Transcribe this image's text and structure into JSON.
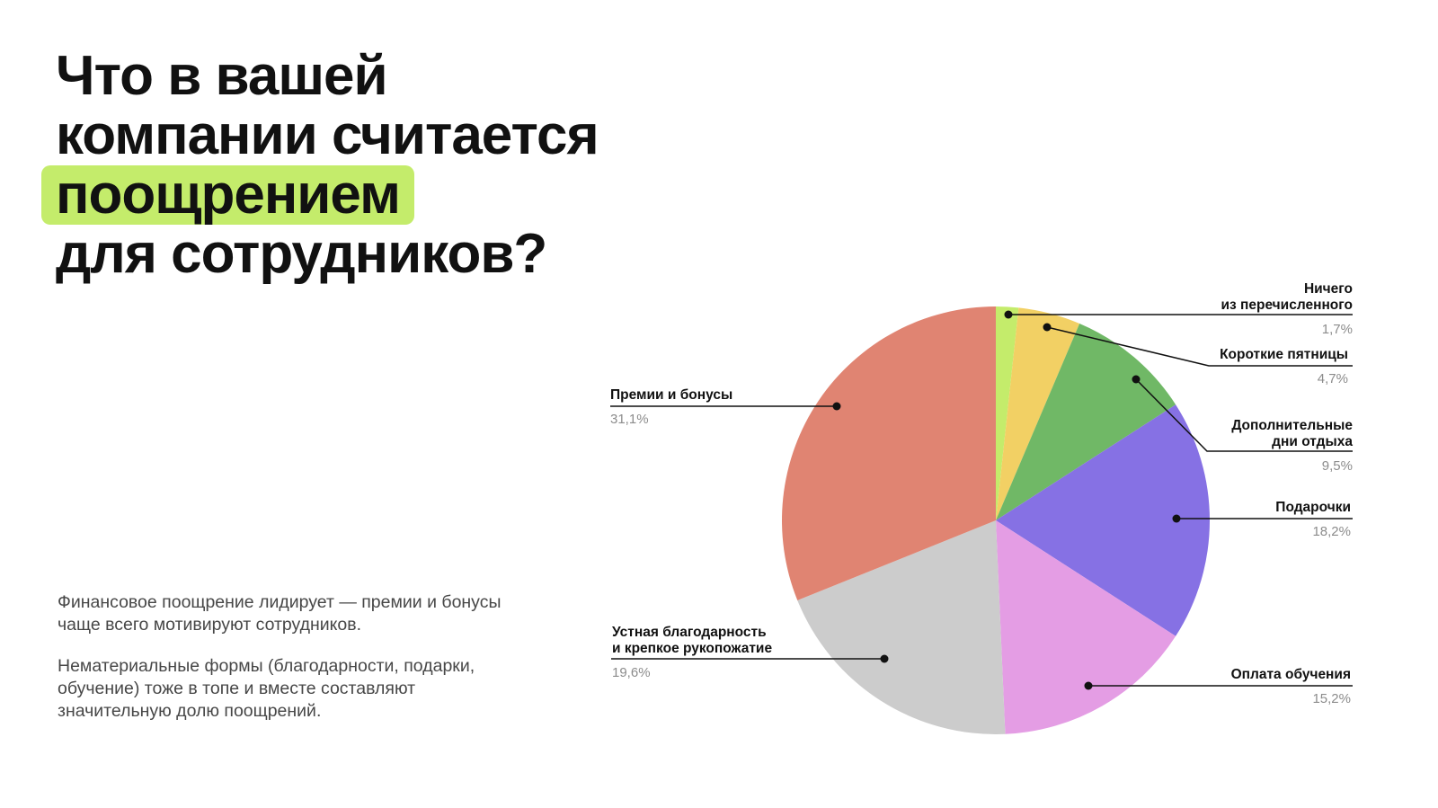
{
  "title": {
    "line1": "Что в вашей",
    "line2": "компании считается",
    "highlight": "поощрением",
    "line4": "для сотрудников?",
    "highlight_color": "#c4ec6b"
  },
  "description": {
    "p1": "Финансовое поощрение лидирует — премии и бонусы чаще всего мотивируют сотрудников.",
    "p2": "Нематериальные формы (благодарности, подарки, обучение) тоже в топе и вместе составляют значительную долю поощрений."
  },
  "chart_data": {
    "type": "pie",
    "start": "12 o'clock, clockwise",
    "slices": [
      {
        "label": "Ничего\nиз перечисленного",
        "value": 1.7,
        "display": "1,7%",
        "color": "#c4ec6b"
      },
      {
        "label": "Короткие пятницы",
        "value": 4.7,
        "display": "4,7%",
        "color": "#f2d064"
      },
      {
        "label": "Дополнительные\nдни отдыха",
        "value": 9.5,
        "display": "9,5%",
        "color": "#70b866"
      },
      {
        "label": "Подарочки",
        "value": 18.2,
        "display": "18,2%",
        "color": "#8671e4"
      },
      {
        "label": "Оплата обучения",
        "value": 15.2,
        "display": "15,2%",
        "color": "#e49de4"
      },
      {
        "label": "Устная благодарность\nи крепкое рукопожатие",
        "value": 19.6,
        "display": "19,6%",
        "color": "#cccccc"
      },
      {
        "label": "Премии и бонусы",
        "value": 31.1,
        "display": "31,1%",
        "color": "#e08472"
      }
    ]
  }
}
